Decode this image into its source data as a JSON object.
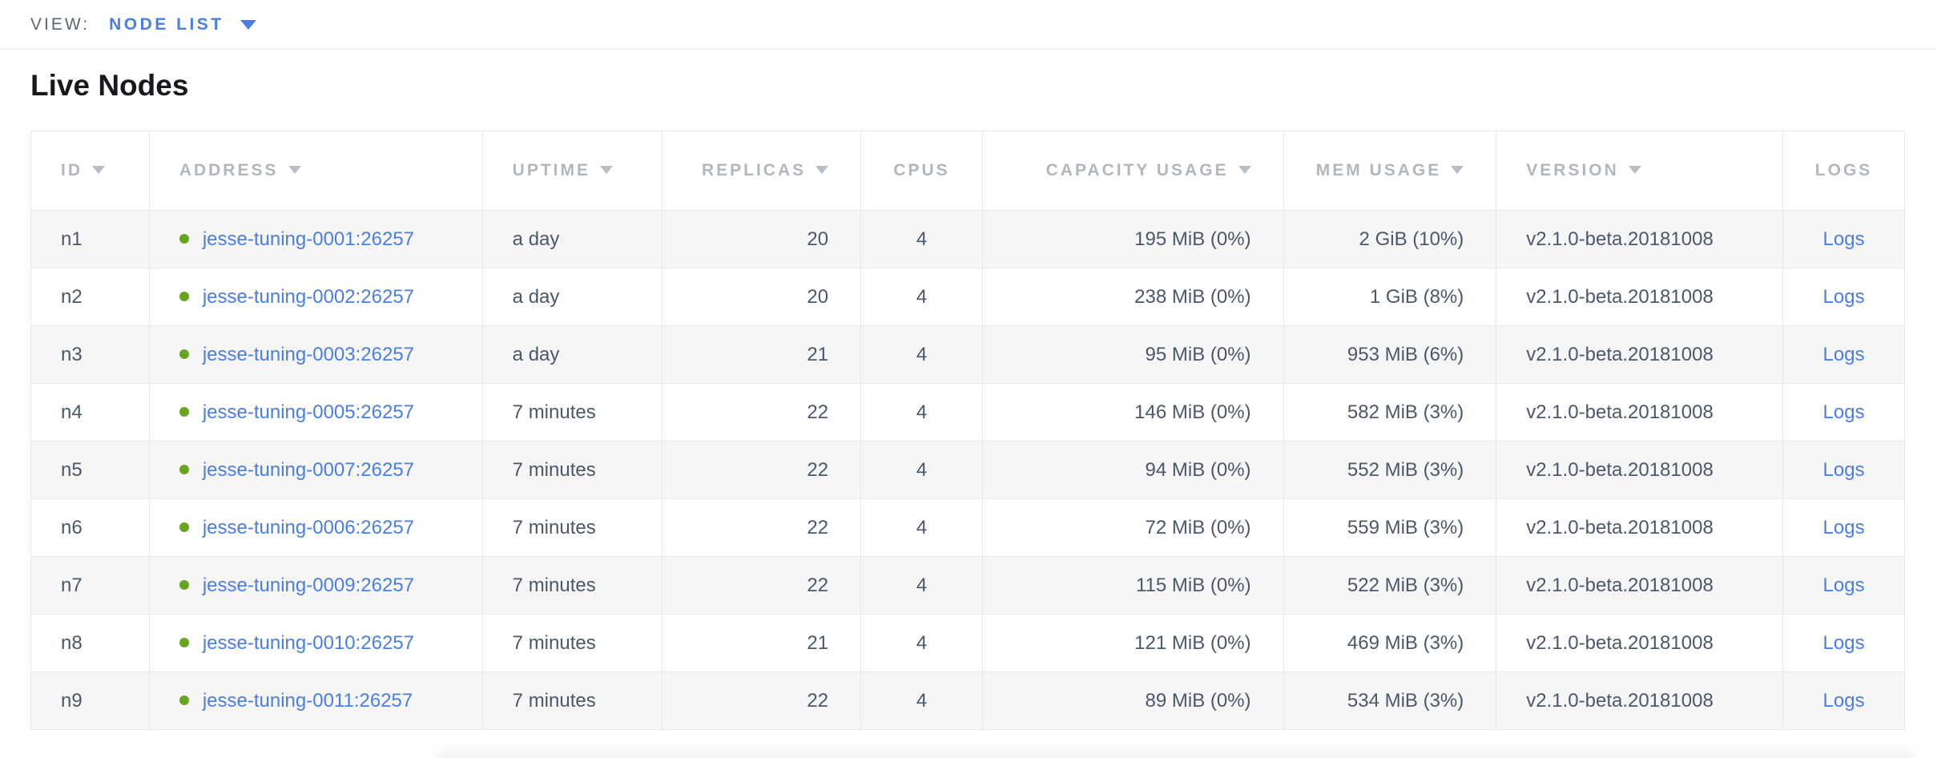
{
  "view_bar": {
    "label": "VIEW:",
    "selected": "NODE LIST"
  },
  "page": {
    "title": "Live Nodes"
  },
  "colors": {
    "accent_blue": "#4a7ee2",
    "status_live_green": "#67a61c",
    "header_gray": "#b1b7bd",
    "text_dark": "#4c5767",
    "row_stripe": "#f6f6f6",
    "border": "#e7e8e9"
  },
  "icons": {
    "view_dropdown": "caret-down-icon",
    "sort_indicator": "sort-desc-icon",
    "node_status": "node-live-status-dot-icon"
  },
  "table": {
    "columns": [
      {
        "key": "id",
        "label": "ID",
        "sortable": true,
        "align": "left"
      },
      {
        "key": "address",
        "label": "ADDRESS",
        "sortable": true,
        "align": "left"
      },
      {
        "key": "uptime",
        "label": "UPTIME",
        "sortable": true,
        "align": "left"
      },
      {
        "key": "replicas",
        "label": "REPLICAS",
        "sortable": true,
        "align": "right"
      },
      {
        "key": "cpus",
        "label": "CPUS",
        "sortable": false,
        "align": "center"
      },
      {
        "key": "capacity",
        "label": "CAPACITY USAGE",
        "sortable": true,
        "align": "right"
      },
      {
        "key": "mem",
        "label": "MEM USAGE",
        "sortable": true,
        "align": "right"
      },
      {
        "key": "version",
        "label": "VERSION",
        "sortable": true,
        "align": "left"
      },
      {
        "key": "logs",
        "label": "LOGS",
        "sortable": false,
        "align": "center"
      }
    ],
    "rows": [
      {
        "id": "n1",
        "status": "live",
        "address": "jesse-tuning-0001:26257",
        "uptime": "a day",
        "replicas": "20",
        "cpus": "4",
        "capacity": "195 MiB (0%)",
        "mem": "2 GiB (10%)",
        "version": "v2.1.0-beta.20181008",
        "logs": "Logs"
      },
      {
        "id": "n2",
        "status": "live",
        "address": "jesse-tuning-0002:26257",
        "uptime": "a day",
        "replicas": "20",
        "cpus": "4",
        "capacity": "238 MiB (0%)",
        "mem": "1 GiB (8%)",
        "version": "v2.1.0-beta.20181008",
        "logs": "Logs"
      },
      {
        "id": "n3",
        "status": "live",
        "address": "jesse-tuning-0003:26257",
        "uptime": "a day",
        "replicas": "21",
        "cpus": "4",
        "capacity": "95 MiB (0%)",
        "mem": "953 MiB (6%)",
        "version": "v2.1.0-beta.20181008",
        "logs": "Logs"
      },
      {
        "id": "n4",
        "status": "live",
        "address": "jesse-tuning-0005:26257",
        "uptime": "7 minutes",
        "replicas": "22",
        "cpus": "4",
        "capacity": "146 MiB (0%)",
        "mem": "582 MiB (3%)",
        "version": "v2.1.0-beta.20181008",
        "logs": "Logs"
      },
      {
        "id": "n5",
        "status": "live",
        "address": "jesse-tuning-0007:26257",
        "uptime": "7 minutes",
        "replicas": "22",
        "cpus": "4",
        "capacity": "94 MiB (0%)",
        "mem": "552 MiB (3%)",
        "version": "v2.1.0-beta.20181008",
        "logs": "Logs"
      },
      {
        "id": "n6",
        "status": "live",
        "address": "jesse-tuning-0006:26257",
        "uptime": "7 minutes",
        "replicas": "22",
        "cpus": "4",
        "capacity": "72 MiB (0%)",
        "mem": "559 MiB (3%)",
        "version": "v2.1.0-beta.20181008",
        "logs": "Logs"
      },
      {
        "id": "n7",
        "status": "live",
        "address": "jesse-tuning-0009:26257",
        "uptime": "7 minutes",
        "replicas": "22",
        "cpus": "4",
        "capacity": "115 MiB (0%)",
        "mem": "522 MiB (3%)",
        "version": "v2.1.0-beta.20181008",
        "logs": "Logs"
      },
      {
        "id": "n8",
        "status": "live",
        "address": "jesse-tuning-0010:26257",
        "uptime": "7 minutes",
        "replicas": "21",
        "cpus": "4",
        "capacity": "121 MiB (0%)",
        "mem": "469 MiB (3%)",
        "version": "v2.1.0-beta.20181008",
        "logs": "Logs"
      },
      {
        "id": "n9",
        "status": "live",
        "address": "jesse-tuning-0011:26257",
        "uptime": "7 minutes",
        "replicas": "22",
        "cpus": "4",
        "capacity": "89 MiB (0%)",
        "mem": "534 MiB (3%)",
        "version": "v2.1.0-beta.20181008",
        "logs": "Logs"
      }
    ]
  }
}
